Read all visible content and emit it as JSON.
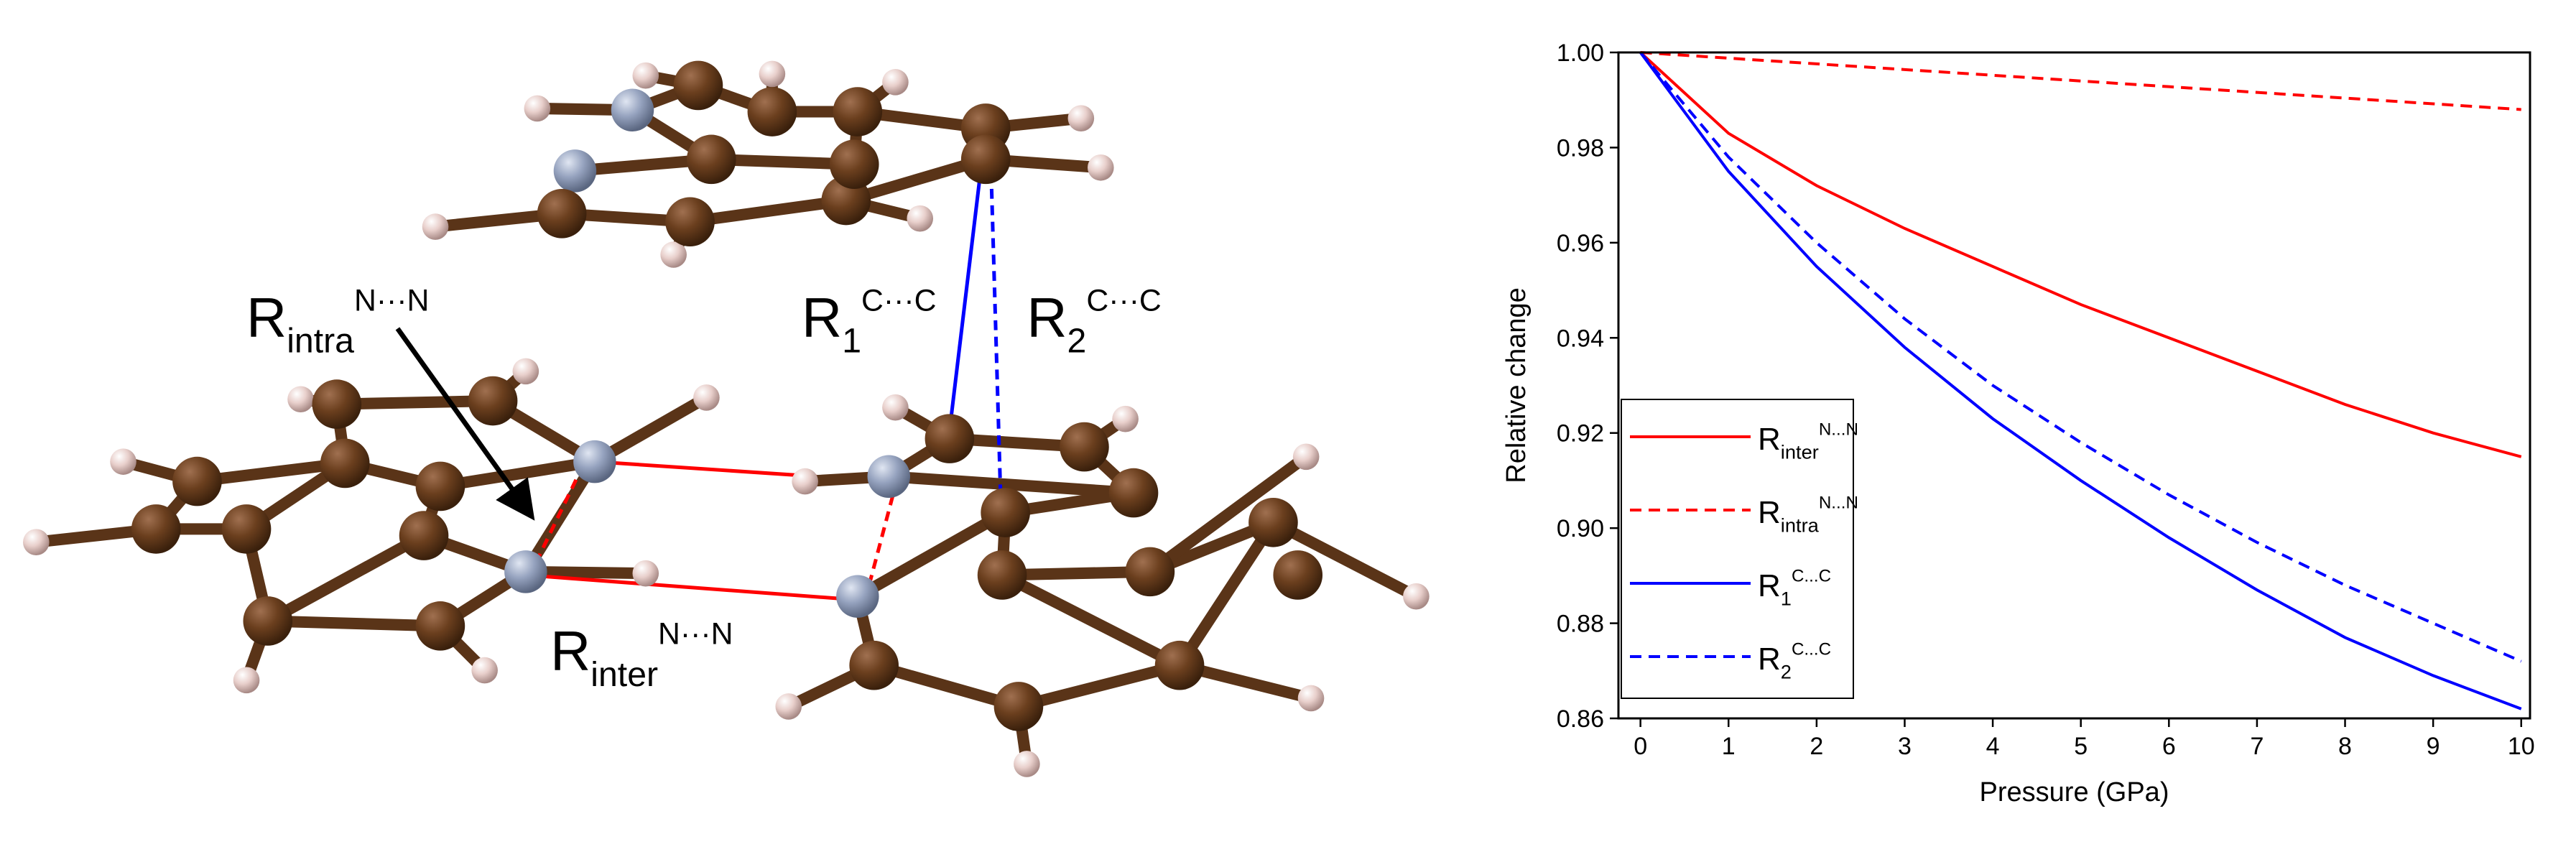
{
  "diagram": {
    "labels": [
      {
        "base": "R",
        "sub": "intra",
        "sup": "N···N"
      },
      {
        "base": "R",
        "sub": "1",
        "sup": "C···C"
      },
      {
        "base": "R",
        "sub": "2",
        "sup": "C···C"
      },
      {
        "base": "R",
        "sub": "inter",
        "sup": "N···N"
      }
    ]
  },
  "chart_data": {
    "type": "line",
    "x_label": "Pressure (GPa)",
    "y_label": "Relative change",
    "x": [
      0,
      1,
      2,
      3,
      4,
      5,
      6,
      7,
      8,
      9,
      10
    ],
    "series": [
      {
        "name": {
          "base": "R",
          "sub": "inter",
          "sup": "N...N"
        },
        "color": "#ff0000",
        "dashed": false,
        "values": [
          1.0,
          0.983,
          0.972,
          0.963,
          0.955,
          0.947,
          0.94,
          0.933,
          0.926,
          0.92,
          0.915
        ]
      },
      {
        "name": {
          "base": "R",
          "sub": "intra",
          "sup": "N...N"
        },
        "color": "#ff0000",
        "dashed": true,
        "values": [
          1.0,
          0.9988,
          0.9976,
          0.9964,
          0.9952,
          0.994,
          0.9928,
          0.9916,
          0.9904,
          0.9892,
          0.988
        ]
      },
      {
        "name": {
          "base": "R",
          "sub": "1",
          "sup": "C...C"
        },
        "color": "#0000ff",
        "dashed": false,
        "values": [
          1.0,
          0.975,
          0.955,
          0.938,
          0.923,
          0.91,
          0.898,
          0.887,
          0.877,
          0.869,
          0.862
        ]
      },
      {
        "name": {
          "base": "R",
          "sub": "2",
          "sup": "C...C"
        },
        "color": "#0000ff",
        "dashed": true,
        "values": [
          1.0,
          0.978,
          0.96,
          0.944,
          0.93,
          0.918,
          0.907,
          0.897,
          0.888,
          0.88,
          0.872
        ]
      }
    ],
    "xlim": [
      -0.25,
      10.1
    ],
    "ylim": [
      0.86,
      1.0
    ],
    "xticks": [
      0,
      1,
      2,
      3,
      4,
      5,
      6,
      7,
      8,
      9,
      10
    ],
    "yticks": [
      0.86,
      0.88,
      {
        "value": 0.9,
        "label": "0.90"
      },
      0.92,
      0.94,
      0.96,
      0.98,
      {
        "value": 1.0,
        "label": "1.00"
      }
    ],
    "legend": "lower-left"
  }
}
